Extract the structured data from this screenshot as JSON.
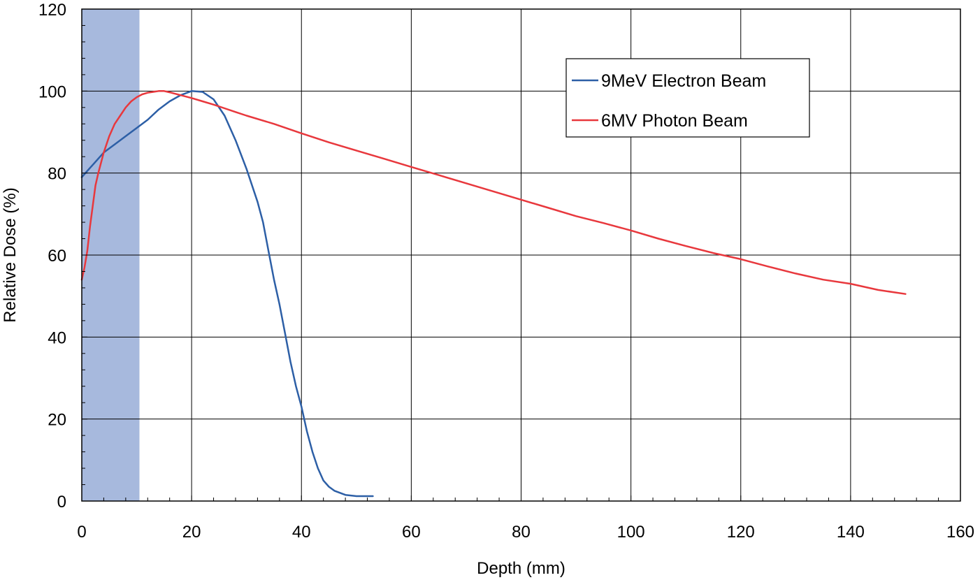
{
  "chart_data": {
    "type": "line",
    "title": "",
    "xlabel": "Depth (mm)",
    "ylabel": "Relative Dose (%)",
    "xlim": [
      0,
      160
    ],
    "ylim": [
      0,
      120
    ],
    "x_ticks": [
      0,
      20,
      40,
      60,
      80,
      100,
      120,
      140,
      160
    ],
    "y_ticks": [
      0,
      20,
      40,
      60,
      80,
      100,
      120
    ],
    "x_minor_step": 4,
    "y_minor_step": 4,
    "grid": true,
    "legend_position": "top-right",
    "shaded_region": {
      "x0": 0,
      "x1": 10.5,
      "color": "#a7b9dd"
    },
    "series": [
      {
        "name": "9MeV Electron Beam",
        "color": "#2d5fa6",
        "points": [
          [
            0,
            79
          ],
          [
            2,
            82
          ],
          [
            4,
            85
          ],
          [
            6,
            87
          ],
          [
            8,
            89
          ],
          [
            10,
            91
          ],
          [
            12,
            93
          ],
          [
            14,
            95.5
          ],
          [
            16,
            97.5
          ],
          [
            18,
            99
          ],
          [
            20,
            100
          ],
          [
            22,
            99.8
          ],
          [
            24,
            98
          ],
          [
            26,
            94
          ],
          [
            28,
            88
          ],
          [
            30,
            81
          ],
          [
            32,
            73
          ],
          [
            33,
            68
          ],
          [
            34,
            61
          ],
          [
            35,
            54
          ],
          [
            36,
            48
          ],
          [
            37,
            41
          ],
          [
            38,
            34
          ],
          [
            39,
            28
          ],
          [
            40,
            23
          ],
          [
            41,
            17
          ],
          [
            42,
            12
          ],
          [
            43,
            8
          ],
          [
            44,
            5
          ],
          [
            45,
            3.5
          ],
          [
            46,
            2.5
          ],
          [
            48,
            1.5
          ],
          [
            50,
            1.2
          ],
          [
            52,
            1.2
          ],
          [
            53,
            1.2
          ]
        ]
      },
      {
        "name": "6MV Photon Beam",
        "color": "#e8383d",
        "points": [
          [
            0,
            54
          ],
          [
            0.5,
            57
          ],
          [
            1,
            61
          ],
          [
            1.5,
            67
          ],
          [
            2,
            72
          ],
          [
            2.5,
            77
          ],
          [
            3,
            80
          ],
          [
            4,
            85
          ],
          [
            5,
            89
          ],
          [
            6,
            92
          ],
          [
            7,
            94
          ],
          [
            8,
            96
          ],
          [
            9,
            97.5
          ],
          [
            10,
            98.5
          ],
          [
            11,
            99.2
          ],
          [
            12,
            99.6
          ],
          [
            13,
            99.8
          ],
          [
            14,
            100
          ],
          [
            15,
            100
          ],
          [
            16,
            99.7
          ],
          [
            18,
            99
          ],
          [
            20,
            98.3
          ],
          [
            22,
            97.5
          ],
          [
            24,
            96.7
          ],
          [
            26,
            95.8
          ],
          [
            28,
            94.9
          ],
          [
            30,
            94
          ],
          [
            35,
            92
          ],
          [
            40,
            89.7
          ],
          [
            45,
            87.5
          ],
          [
            50,
            85.5
          ],
          [
            55,
            83.5
          ],
          [
            60,
            81.5
          ],
          [
            65,
            79.5
          ],
          [
            70,
            77.5
          ],
          [
            75,
            75.5
          ],
          [
            80,
            73.5
          ],
          [
            85,
            71.5
          ],
          [
            90,
            69.5
          ],
          [
            95,
            67.8
          ],
          [
            100,
            66
          ],
          [
            105,
            64
          ],
          [
            110,
            62.2
          ],
          [
            115,
            60.5
          ],
          [
            120,
            59
          ],
          [
            125,
            57.2
          ],
          [
            130,
            55.5
          ],
          [
            135,
            54
          ],
          [
            140,
            53
          ],
          [
            145,
            51.5
          ],
          [
            150,
            50.5
          ]
        ]
      }
    ]
  }
}
